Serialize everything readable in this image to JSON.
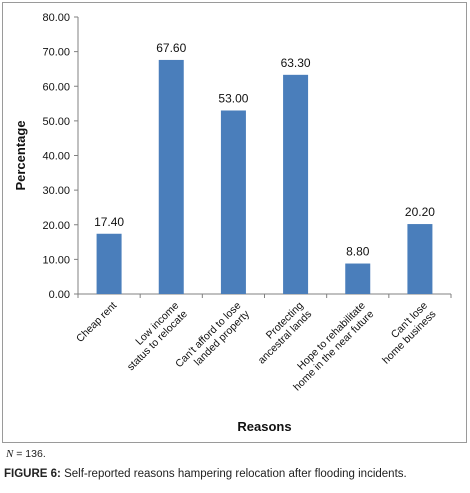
{
  "chart_data": {
    "type": "bar",
    "categories": [
      "Cheap rent",
      "Low income status to relocate",
      "Can't afford to lose landed property",
      "Protecting ancestral lands",
      "Hope to rehabilitate home in the near future",
      "Can't lose home business"
    ],
    "category_lines": [
      [
        "Cheap rent"
      ],
      [
        "Low income",
        "status to relocate"
      ],
      [
        "Can't afford to lose",
        "landed property"
      ],
      [
        "Protecting",
        "ancestral lands"
      ],
      [
        "Hope to rehabilitate",
        "home in the near future"
      ],
      [
        "Can't lose",
        "home business"
      ]
    ],
    "values": [
      17.4,
      67.6,
      53.0,
      63.3,
      8.8,
      20.2
    ],
    "value_labels": [
      "17.40",
      "67.60",
      "53.00",
      "63.30",
      "8.80",
      "20.20"
    ],
    "xlabel": "Reasons",
    "ylabel": "Percentage",
    "ylim": [
      0,
      80
    ],
    "yticks": [
      "0.00",
      "10.00",
      "20.00",
      "30.00",
      "40.00",
      "50.00",
      "60.00",
      "70.00",
      "80.00"
    ],
    "grid": false,
    "bar_color": "#4a7ebb"
  },
  "note": {
    "symbol": "N",
    "text": " = 136."
  },
  "caption": {
    "label": "FIGURE 6:",
    "text": " Self-reported reasons hampering relocation after flooding incidents."
  }
}
